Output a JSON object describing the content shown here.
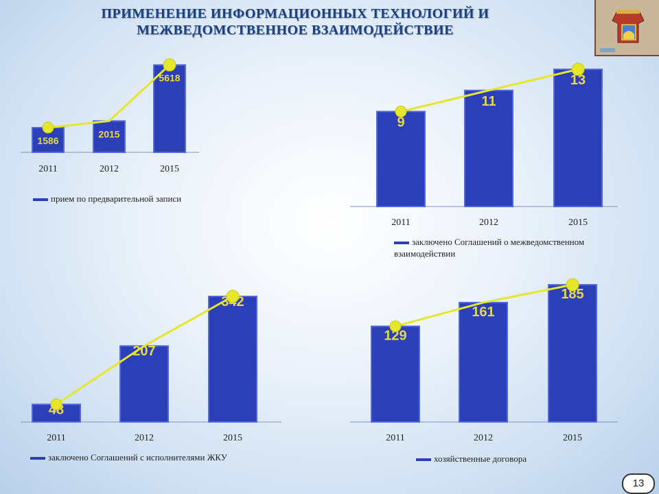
{
  "title_line1": "ПРИМЕНЕНИЕ ИНФОРМАЦИОННЫХ ТЕХНОЛОГИЙ И",
  "title_line2": "МЕЖВЕДОМСТВЕННОЕ ВЗАИМОДЕЙСТВИЕ",
  "page_number": "13",
  "colors": {
    "bar": "#2b3fb8",
    "bar_edge": "#5468e0",
    "line": "#e6e62a",
    "value_text": "#e8d84a"
  },
  "chart_data": [
    {
      "type": "bar",
      "categories": [
        "2011",
        "2012",
        "2015"
      ],
      "values": [
        1586,
        2015,
        5618
      ],
      "ylim": [
        0,
        6000
      ],
      "series": [
        {
          "name": "прием по предварительной записи",
          "values": [
            1586,
            2015,
            5618
          ]
        }
      ],
      "legend_position": "bottom-left"
    },
    {
      "type": "bar",
      "categories": [
        "2011",
        "2012",
        "2015"
      ],
      "values": [
        9,
        11,
        13
      ],
      "ylim": [
        0,
        13
      ],
      "series": [
        {
          "name": "заключено Соглашений о межведомственном взаимодействии",
          "values": [
            9,
            11,
            13
          ]
        }
      ],
      "legend_position": "bottom"
    },
    {
      "type": "bar",
      "categories": [
        "2011",
        "2012",
        "2015"
      ],
      "values": [
        48,
        207,
        342
      ],
      "ylim": [
        0,
        342
      ],
      "series": [
        {
          "name": "заключено Соглашений с исполнителями ЖКУ",
          "values": [
            48,
            207,
            342
          ]
        }
      ],
      "legend_position": "bottom-left"
    },
    {
      "type": "bar",
      "categories": [
        "2011",
        "2012",
        "2015"
      ],
      "values": [
        129,
        161,
        185
      ],
      "ylim": [
        0,
        185
      ],
      "series": [
        {
          "name": "хозяйственные договора",
          "values": [
            129,
            161,
            185
          ]
        }
      ],
      "legend_position": "bottom"
    }
  ]
}
